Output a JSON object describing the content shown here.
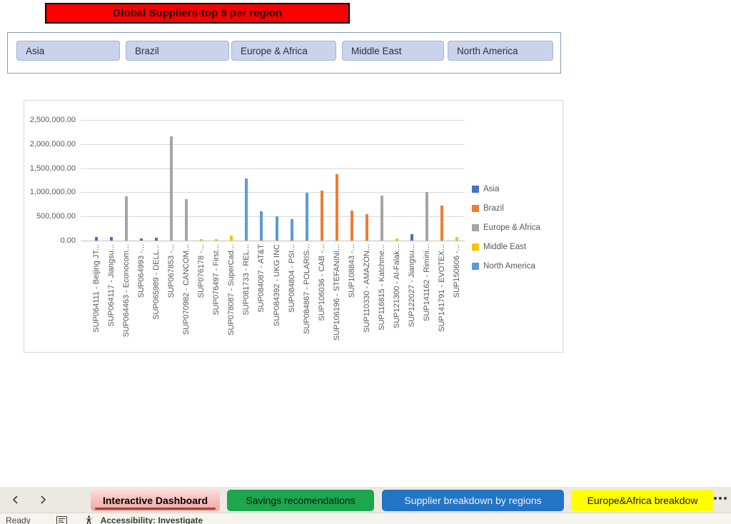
{
  "header": {
    "title": "Global Suppliers-top 5 per region"
  },
  "slicer": {
    "buttons": [
      "Asia",
      "Brazil",
      "Europe & Africa",
      "Middle East",
      "North America"
    ]
  },
  "chart_data": {
    "type": "bar",
    "title": "",
    "xlabel": "",
    "ylabel": "",
    "ylim": [
      0,
      2500000
    ],
    "grid": true,
    "legend_position": "right",
    "ytick_labels": [
      "0.00",
      "500,000.00",
      "1,000,000.00",
      "1,500,000.00",
      "2,000,000.00",
      "2,500,000.00"
    ],
    "legend": [
      "Asia",
      "Brazil",
      "Europe & Africa",
      "Middle East",
      "North America"
    ],
    "colors": {
      "Asia": "#4472C4",
      "Brazil": "#ED7D31",
      "Europe & Africa": "#A5A5A5",
      "Middle East": "#FFC000",
      "North America": "#5B9BD5"
    },
    "categories": [
      "SUP064111 - Beijing JT...",
      "SUP064117 - Jiangsu...",
      "SUP064463 - Econocom...",
      "SUP064993 -...",
      "SUP065989 - DELL...",
      "SUP067853 -...",
      "SUP070982 - CANCOM...",
      "SUP076178 -...",
      "SUP076497 - First...",
      "SUP078087 - SuperCad...",
      "SUP081733 - REL...",
      "SUP084087 - AT&T",
      "SUP084392 - UKG INC",
      "SUP084804 - PSI...",
      "SUP084867 - POLARIS...",
      "SUP106036 - CAB -...",
      "SUP106196 - STEFANINI...",
      "SUP108843 -...",
      "SUP110330 - AMAZON...",
      "SUP116815 - Katchme...",
      "SUP121300 - Al-Falak...",
      "SUP122027 - Jiangsu...",
      "SUP141162 - Rimini...",
      "SUP141791 - EVOTEX...",
      "SUP150606 -..."
    ],
    "point_regions": [
      "Asia",
      "Asia",
      "Europe & Africa",
      "Asia",
      "Asia",
      "Europe & Africa",
      "Europe & Africa",
      "Middle East",
      "Middle East",
      "Middle East",
      "North America",
      "North America",
      "North America",
      "North America",
      "North America",
      "Brazil",
      "Brazil",
      "Brazil",
      "Brazil",
      "Europe & Africa",
      "Middle East",
      "Asia",
      "Europe & Africa",
      "Brazil",
      "Middle East"
    ],
    "values": [
      70000,
      70000,
      910000,
      50000,
      65000,
      2160000,
      860000,
      20000,
      35000,
      110000,
      1280000,
      610000,
      500000,
      440000,
      990000,
      1040000,
      1380000,
      620000,
      550000,
      930000,
      40000,
      130000,
      1000000,
      730000,
      70000
    ]
  },
  "tabs": {
    "items": [
      {
        "label": "Interactive Dashboard"
      },
      {
        "label": "Savings recomendations"
      },
      {
        "label": "Supplier breakdown by regions"
      },
      {
        "label": "Europe&Africa breakdow"
      }
    ]
  },
  "status": {
    "ready_label": "Ready",
    "accessibility_label": "Accessibility: Investigate"
  }
}
